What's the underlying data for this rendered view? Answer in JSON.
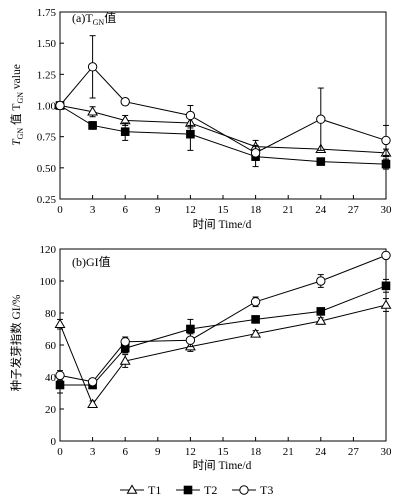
{
  "chart_data": [
    {
      "type": "line",
      "title": "(a)T",
      "title_sub": "GN",
      "title_suffix": "值",
      "xlabel": "时间 Time/d",
      "ylabel_prefix": "T",
      "ylabel_sub1": "GN",
      "ylabel_mid": " 值 T",
      "ylabel_sub2": "GN",
      "ylabel_suffix": " value",
      "xlim": [
        0,
        30
      ],
      "ylim": [
        0.25,
        1.75
      ],
      "xticks": [
        "0",
        "3",
        "6",
        "9",
        "12",
        "15",
        "18",
        "21",
        "24",
        "27",
        "30"
      ],
      "yticks": [
        "0.25",
        "0.50",
        "0.75",
        "1.00",
        "1.25",
        "1.50",
        "1.75"
      ],
      "x": [
        0,
        3,
        6,
        12,
        18,
        24,
        30
      ],
      "series": [
        {
          "name": "T1",
          "marker": "triangle-open",
          "values": [
            1.0,
            0.95,
            0.88,
            0.86,
            0.67,
            0.65,
            0.62
          ],
          "err": [
            0,
            0.04,
            0.04,
            0.04,
            0.05,
            0,
            0.03
          ]
        },
        {
          "name": "T2",
          "marker": "square-filled",
          "values": [
            1.0,
            0.84,
            0.79,
            0.77,
            0.59,
            0.55,
            0.53
          ],
          "err": [
            0,
            0.03,
            0.07,
            0.13,
            0.08,
            0,
            0.04
          ]
        },
        {
          "name": "T3",
          "marker": "circle-open",
          "values": [
            1.0,
            1.31,
            1.03,
            0.92,
            0.62,
            0.89,
            0.72
          ],
          "err": [
            0,
            0.25,
            0,
            0.08,
            0.06,
            0.25,
            0.12
          ]
        }
      ]
    },
    {
      "type": "line",
      "title": "(b)GI值",
      "xlabel": "时间 Time/d",
      "ylabel": "种子发芽指数 GI/%",
      "xlim": [
        0,
        30
      ],
      "ylim": [
        0,
        120
      ],
      "xticks": [
        "0",
        "3",
        "6",
        "9",
        "12",
        "15",
        "18",
        "21",
        "24",
        "27",
        "30"
      ],
      "yticks": [
        "0",
        "20",
        "40",
        "60",
        "80",
        "100",
        "120"
      ],
      "x": [
        0,
        3,
        6,
        12,
        18,
        24,
        30
      ],
      "series": [
        {
          "name": "T1",
          "marker": "triangle-open",
          "values": [
            73,
            23,
            50,
            59,
            67,
            75,
            85
          ],
          "err": [
            3,
            2,
            4,
            3,
            2,
            2,
            4
          ]
        },
        {
          "name": "T2",
          "marker": "square-filled",
          "values": [
            35,
            35,
            58,
            70,
            76,
            81,
            97
          ],
          "err": [
            5,
            2,
            3,
            6,
            2,
            2,
            4
          ]
        },
        {
          "name": "T3",
          "marker": "circle-open",
          "values": [
            41,
            37,
            62,
            63,
            87,
            100,
            116
          ],
          "err": [
            3,
            2,
            3,
            4,
            3,
            4,
            2
          ]
        }
      ]
    }
  ],
  "legend": {
    "placement": "bottom-center",
    "items": [
      {
        "label": "T1",
        "marker": "triangle-open"
      },
      {
        "label": "T2",
        "marker": "square-filled"
      },
      {
        "label": "T3",
        "marker": "circle-open"
      }
    ]
  }
}
